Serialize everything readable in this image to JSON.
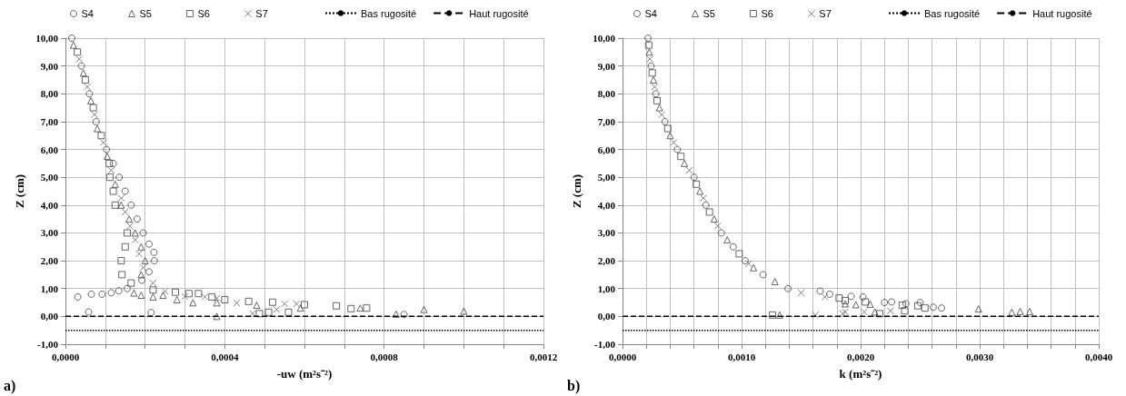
{
  "chart_data": [
    {
      "type": "scatter",
      "xlabel": "-uw (m²s⁻²)",
      "ylabel": "Z (cm)",
      "annotations": [
        "a)"
      ],
      "legend": "top",
      "grid": true,
      "xlim": [
        0,
        0.0012
      ],
      "ylim": [
        -1,
        10
      ],
      "xticks": [
        {
          "value": 0,
          "label": "0,0000"
        },
        {
          "value": 0.0001,
          "label": null
        },
        {
          "value": 0.0002,
          "label": null
        },
        {
          "value": 0.0003,
          "label": null
        },
        {
          "value": 0.0004,
          "label": "0,0004"
        },
        {
          "value": 0.0005,
          "label": null
        },
        {
          "value": 0.0006,
          "label": null
        },
        {
          "value": 0.0007,
          "label": null
        },
        {
          "value": 0.0008,
          "label": "0,0008"
        },
        {
          "value": 0.0009,
          "label": null
        },
        {
          "value": 0.001,
          "label": null
        },
        {
          "value": 0.0011,
          "label": null
        },
        {
          "value": 0.0012,
          "label": "0,0012"
        }
      ],
      "yticks": [
        {
          "value": -1,
          "label": "-1,00"
        },
        {
          "value": 0,
          "label": "0,00"
        },
        {
          "value": 1,
          "label": "1,00"
        },
        {
          "value": 2,
          "label": "2,00"
        },
        {
          "value": 3,
          "label": "3,00"
        },
        {
          "value": 4,
          "label": "4,00"
        },
        {
          "value": 5,
          "label": "5,00"
        },
        {
          "value": 6,
          "label": "6,00"
        },
        {
          "value": 7,
          "label": "7,00"
        },
        {
          "value": 8,
          "label": "8,00"
        },
        {
          "value": 9,
          "label": "9,00"
        },
        {
          "value": 10,
          "label": "10,00"
        }
      ],
      "ref_lines": [
        {
          "axis": "y",
          "value": -0.5,
          "label": "Bas rugosité",
          "line_style": "dotted",
          "color": "#000000"
        },
        {
          "axis": "y",
          "value": 0,
          "label": "Haut rugosité",
          "line_style": "dashed",
          "color": "#000000"
        }
      ],
      "series": [
        {
          "name": "S4",
          "color": "#404040",
          "marker": "circle",
          "x": [
            1.6e-05,
            4e-05,
            6e-05,
            7.7e-05,
            0.000103,
            0.00012,
            0.000135,
            0.00015,
            0.000165,
            0.00018,
            0.000195,
            0.00021,
            0.000222,
            0.000223,
            0.00021,
            0.000192,
            0.000155,
            0.000134,
            0.000115,
            9.2e-05,
            6.5e-05,
            3.1e-05,
            5.8e-05,
            0.000215,
            0.00085
          ],
          "values": [
            10,
            9,
            8,
            7,
            6,
            5.5,
            5,
            4.5,
            4,
            3.5,
            3,
            2.6,
            2.3,
            2,
            1.6,
            1.3,
            1,
            0.92,
            0.85,
            0.8,
            0.8,
            0.7,
            0.16,
            0.14,
            0.07
          ]
        },
        {
          "name": "S5",
          "color": "#404040",
          "marker": "triangle",
          "x": [
            2e-05,
            4.5e-05,
            6.4e-05,
            8e-05,
            0.000105,
            0.000125,
            0.00014,
            0.00016,
            0.000175,
            0.00019,
            0.0002,
            0.00019,
            0.000172,
            0.00019,
            0.00022,
            0.000245,
            0.00028,
            0.00032,
            0.00038,
            0.00038,
            0.00048,
            0.00059,
            0.00074,
            0.00083,
            0.0009,
            0.001
          ],
          "values": [
            9.75,
            8.75,
            7.75,
            6.75,
            5.75,
            4.75,
            4,
            3.5,
            3,
            2.5,
            2,
            1.5,
            0.84,
            0.76,
            0.7,
            0.76,
            0.6,
            0.49,
            0.49,
            0,
            0.4,
            0.3,
            0.3,
            0.08,
            0.25,
            0.19
          ]
        },
        {
          "name": "S6",
          "color": "#404040",
          "marker": "square",
          "x": [
            3e-05,
            5e-05,
            7e-05,
            9e-05,
            0.00011,
            0.000112,
            0.00012,
            0.000125,
            0.000155,
            0.00015,
            0.00014,
            0.000142,
            0.000165,
            0.00022,
            0.000276,
            0.00031,
            0.000334,
            0.000368,
            0.0004,
            0.00046,
            0.00052,
            0.000487,
            0.00051,
            0.00056,
            0.0006,
            0.00068,
            0.000717,
            0.000756
          ],
          "values": [
            9.5,
            8.5,
            7.5,
            6.5,
            5.5,
            5,
            4.5,
            4,
            3,
            2.5,
            2,
            1.5,
            1.2,
            0.95,
            0.87,
            0.82,
            0.82,
            0.7,
            0.6,
            0.54,
            0.51,
            0.1,
            0.15,
            0.15,
            0.42,
            0.38,
            0.28,
            0.3
          ]
        },
        {
          "name": "S7",
          "color": "#606060",
          "marker": "cross",
          "x": [
            3.5e-05,
            5.5e-05,
            7.3e-05,
            9.5e-05,
            0.000115,
            0.00014,
            0.00015,
            0.000162,
            0.000175,
            0.000185,
            0.000195,
            0.00022,
            0.00025,
            0.0003,
            0.00035,
            0.00038,
            0.00043,
            0.00047,
            0.00055,
            0.00053,
            0.00058
          ],
          "values": [
            9.25,
            8.25,
            7.25,
            6.25,
            5.25,
            4.25,
            3.75,
            3.25,
            2.75,
            2.25,
            1.75,
            1.2,
            0.9,
            0.72,
            0.7,
            0.65,
            0.48,
            0.1,
            0.45,
            0.25,
            0.45
          ]
        }
      ]
    },
    {
      "type": "scatter",
      "xlabel": "k (m²s⁻²)",
      "ylabel": "Z (cm)",
      "annotations": [
        "b)"
      ],
      "legend": "top",
      "grid": true,
      "xlim": [
        0,
        0.004
      ],
      "ylim": [
        -1,
        10
      ],
      "xticks": [
        {
          "value": 0,
          "label": "0,0000"
        },
        {
          "value": 0.0002,
          "label": null
        },
        {
          "value": 0.0004,
          "label": null
        },
        {
          "value": 0.0006,
          "label": null
        },
        {
          "value": 0.0008,
          "label": null
        },
        {
          "value": 0.001,
          "label": "0,0010"
        },
        {
          "value": 0.0012,
          "label": null
        },
        {
          "value": 0.0014,
          "label": null
        },
        {
          "value": 0.0016,
          "label": null
        },
        {
          "value": 0.0018,
          "label": null
        },
        {
          "value": 0.002,
          "label": "0,0020"
        },
        {
          "value": 0.0022,
          "label": null
        },
        {
          "value": 0.0024,
          "label": null
        },
        {
          "value": 0.0026,
          "label": null
        },
        {
          "value": 0.0028,
          "label": null
        },
        {
          "value": 0.003,
          "label": "0,0030"
        },
        {
          "value": 0.0032,
          "label": null
        },
        {
          "value": 0.0034,
          "label": null
        },
        {
          "value": 0.0036,
          "label": null
        },
        {
          "value": 0.0038,
          "label": null
        },
        {
          "value": 0.004,
          "label": "0,0040"
        }
      ],
      "yticks": [
        {
          "value": -1,
          "label": "-1,00"
        },
        {
          "value": 0,
          "label": "0,00"
        },
        {
          "value": 1,
          "label": "1,00"
        },
        {
          "value": 2,
          "label": "2,00"
        },
        {
          "value": 3,
          "label": "3,00"
        },
        {
          "value": 4,
          "label": "4,00"
        },
        {
          "value": 5,
          "label": "5,00"
        },
        {
          "value": 6,
          "label": "6,00"
        },
        {
          "value": 7,
          "label": "7,00"
        },
        {
          "value": 8,
          "label": "8,00"
        },
        {
          "value": 9,
          "label": "9,00"
        },
        {
          "value": 10,
          "label": "10,00"
        }
      ],
      "ref_lines": [
        {
          "axis": "y",
          "value": -0.5,
          "label": "Bas rugosité",
          "line_style": "dotted",
          "color": "#000000"
        },
        {
          "axis": "y",
          "value": 0,
          "label": "Haut rugosité",
          "line_style": "dashed",
          "color": "#000000"
        }
      ],
      "series": [
        {
          "name": "S4",
          "color": "#404040",
          "marker": "circle",
          "x": [
            0.000214,
            0.00024,
            0.00028,
            0.000356,
            0.00046,
            0.0006,
            0.0007,
            0.00083,
            0.00093,
            0.00103,
            0.00118,
            0.00139,
            0.00166,
            0.00174,
            0.00192,
            0.00202,
            0.0022,
            0.00226,
            0.00238,
            0.0025,
            0.00261,
            0.00268
          ],
          "values": [
            10,
            9,
            8,
            7,
            6,
            5,
            4,
            3,
            2.5,
            2,
            1.5,
            1,
            0.91,
            0.8,
            0.72,
            0.7,
            0.5,
            0.52,
            0.46,
            0.5,
            0.33,
            0.3
          ]
        },
        {
          "name": "S5",
          "color": "#404040",
          "marker": "triangle",
          "x": [
            0.000225,
            0.00026,
            0.00031,
            0.0004,
            0.00052,
            0.00065,
            0.00077,
            0.00088,
            0.0011,
            0.00128,
            0.00187,
            0.00196,
            0.00208,
            0.00212,
            0.00299,
            0.00327,
            0.00334,
            0.00342,
            0.00132
          ],
          "values": [
            9.5,
            8.5,
            7.5,
            6.5,
            5.5,
            4.5,
            3.5,
            2.75,
            1.75,
            1.25,
            0.45,
            0.42,
            0.44,
            0.16,
            0.27,
            0.15,
            0.18,
            0.17,
            0.05
          ]
        },
        {
          "name": "S6",
          "color": "#404040",
          "marker": "square",
          "x": [
            0.00022,
            0.00025,
            0.00029,
            0.00038,
            0.00049,
            0.00062,
            0.00073,
            0.00098,
            0.00182,
            0.00187,
            0.00204,
            0.00216,
            0.00235,
            0.00237,
            0.00248,
            0.00254,
            0.00126
          ],
          "values": [
            9.75,
            8.75,
            7.75,
            6.75,
            5.75,
            4.75,
            3.75,
            2.25,
            0.66,
            0.57,
            0.52,
            0.1,
            0.4,
            0.2,
            0.38,
            0.3,
            0.05
          ]
        },
        {
          "name": "S7",
          "color": "#606060",
          "marker": "cross",
          "x": [
            0.00023,
            0.00027,
            0.00033,
            0.00043,
            0.00056,
            0.00068,
            0.0008,
            0.00106,
            0.0015,
            0.0017,
            0.00187,
            0.00203,
            0.00225,
            0.00162,
            0.00185
          ],
          "values": [
            9.25,
            8.25,
            7.25,
            6.25,
            5.25,
            4.25,
            3.25,
            1.9,
            0.85,
            0.7,
            0.16,
            0.16,
            0.2,
            0.05,
            0.1
          ]
        }
      ]
    }
  ]
}
